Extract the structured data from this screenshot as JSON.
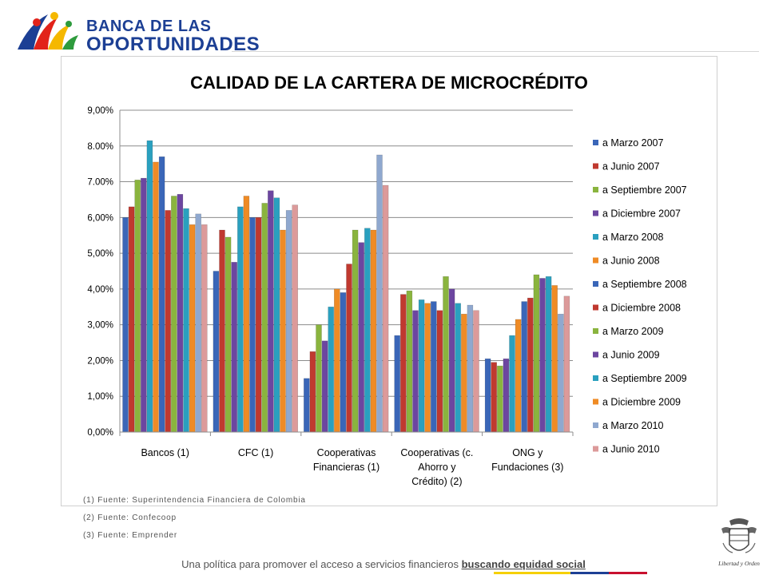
{
  "header": {
    "logo_line1": "BANCA DE LAS",
    "logo_line2": "OPORTUNIDADES",
    "brand_color": "#1c3f94"
  },
  "chart_data": {
    "type": "bar",
    "title": "CALIDAD DE LA CARTERA DE MICROCRÉDITO",
    "categories": [
      "Bancos (1)",
      "CFC (1)",
      "Cooperativas Financieras (1)",
      "Cooperativas (c. Ahorro y Crédito) (2)",
      "ONG y Fundaciones (3)"
    ],
    "category_lines": [
      [
        "Bancos (1)"
      ],
      [
        "CFC (1)"
      ],
      [
        "Cooperativas",
        "Financieras (1)"
      ],
      [
        "Cooperativas (c.",
        "Ahorro y",
        "Crédito) (2)"
      ],
      [
        "ONG y",
        "Fundaciones (3)"
      ]
    ],
    "ylim": [
      0,
      9
    ],
    "yticks": [
      "0,00%",
      "1,00%",
      "2,00%",
      "3,00%",
      "4,00%",
      "5,00%",
      "6,00%",
      "7.00%",
      "8.00%",
      "9,00%"
    ],
    "grid": true,
    "legend_position": "right",
    "series": [
      {
        "name": "a Marzo 2007",
        "color": "#3a66b8",
        "values": [
          6.0,
          4.5,
          1.5,
          2.7,
          2.05
        ]
      },
      {
        "name": "a Junio 2007",
        "color": "#c0392f",
        "values": [
          6.3,
          5.65,
          2.25,
          3.85,
          1.95
        ]
      },
      {
        "name": "a Septiembre 2007",
        "color": "#8ab43e",
        "values": [
          7.05,
          5.45,
          3.0,
          3.95,
          1.85
        ]
      },
      {
        "name": "a Diciembre 2007",
        "color": "#6c46a0",
        "values": [
          7.1,
          4.75,
          2.55,
          3.4,
          2.05
        ]
      },
      {
        "name": "a Marzo 2008",
        "color": "#2aa0bf",
        "values": [
          8.15,
          6.3,
          3.5,
          3.7,
          2.7
        ]
      },
      {
        "name": "a Junio 2008",
        "color": "#ef8b25",
        "values": [
          7.55,
          6.6,
          4.0,
          3.6,
          3.15
        ]
      },
      {
        "name": "a Septiembre 2008",
        "color": "#3a66b8",
        "values": [
          7.7,
          6.0,
          3.9,
          3.65,
          3.65
        ]
      },
      {
        "name": "a Diciembre 2008",
        "color": "#c0392f",
        "values": [
          6.2,
          6.0,
          4.7,
          3.4,
          3.75
        ]
      },
      {
        "name": "a Marzo 2009",
        "color": "#8ab43e",
        "values": [
          6.6,
          6.4,
          5.65,
          4.35,
          4.4
        ]
      },
      {
        "name": "a Junio 2009",
        "color": "#6c46a0",
        "values": [
          6.65,
          6.75,
          5.3,
          4.0,
          4.3
        ]
      },
      {
        "name": "a Septiembre 2009",
        "color": "#2aa0bf",
        "values": [
          6.25,
          6.55,
          5.7,
          3.6,
          4.35
        ]
      },
      {
        "name": "a Diciembre 2009",
        "color": "#ef8b25",
        "values": [
          5.8,
          5.65,
          5.65,
          3.3,
          4.1
        ]
      },
      {
        "name": "a Marzo 2010",
        "color": "#8fa8cf",
        "values": [
          6.1,
          6.2,
          7.75,
          3.55,
          3.3
        ]
      },
      {
        "name": "a Junio 2010",
        "color": "#dc9a9a",
        "values": [
          5.8,
          6.35,
          6.9,
          3.4,
          3.8
        ]
      }
    ]
  },
  "notes": [
    "(1) Fuente: Superintendencia Financiera de Colombia",
    "(2) Fuente: Confecoop",
    "(3) Fuente: Emprender"
  ],
  "footer": {
    "text": "Una política para promover el acceso a servicios financieros ",
    "emphasis": "buscando equidad social"
  },
  "seal": {
    "caption": "Libertad y Orden"
  },
  "flag_colors": [
    "#f5d000",
    "#1c3f94",
    "#c8102e"
  ]
}
